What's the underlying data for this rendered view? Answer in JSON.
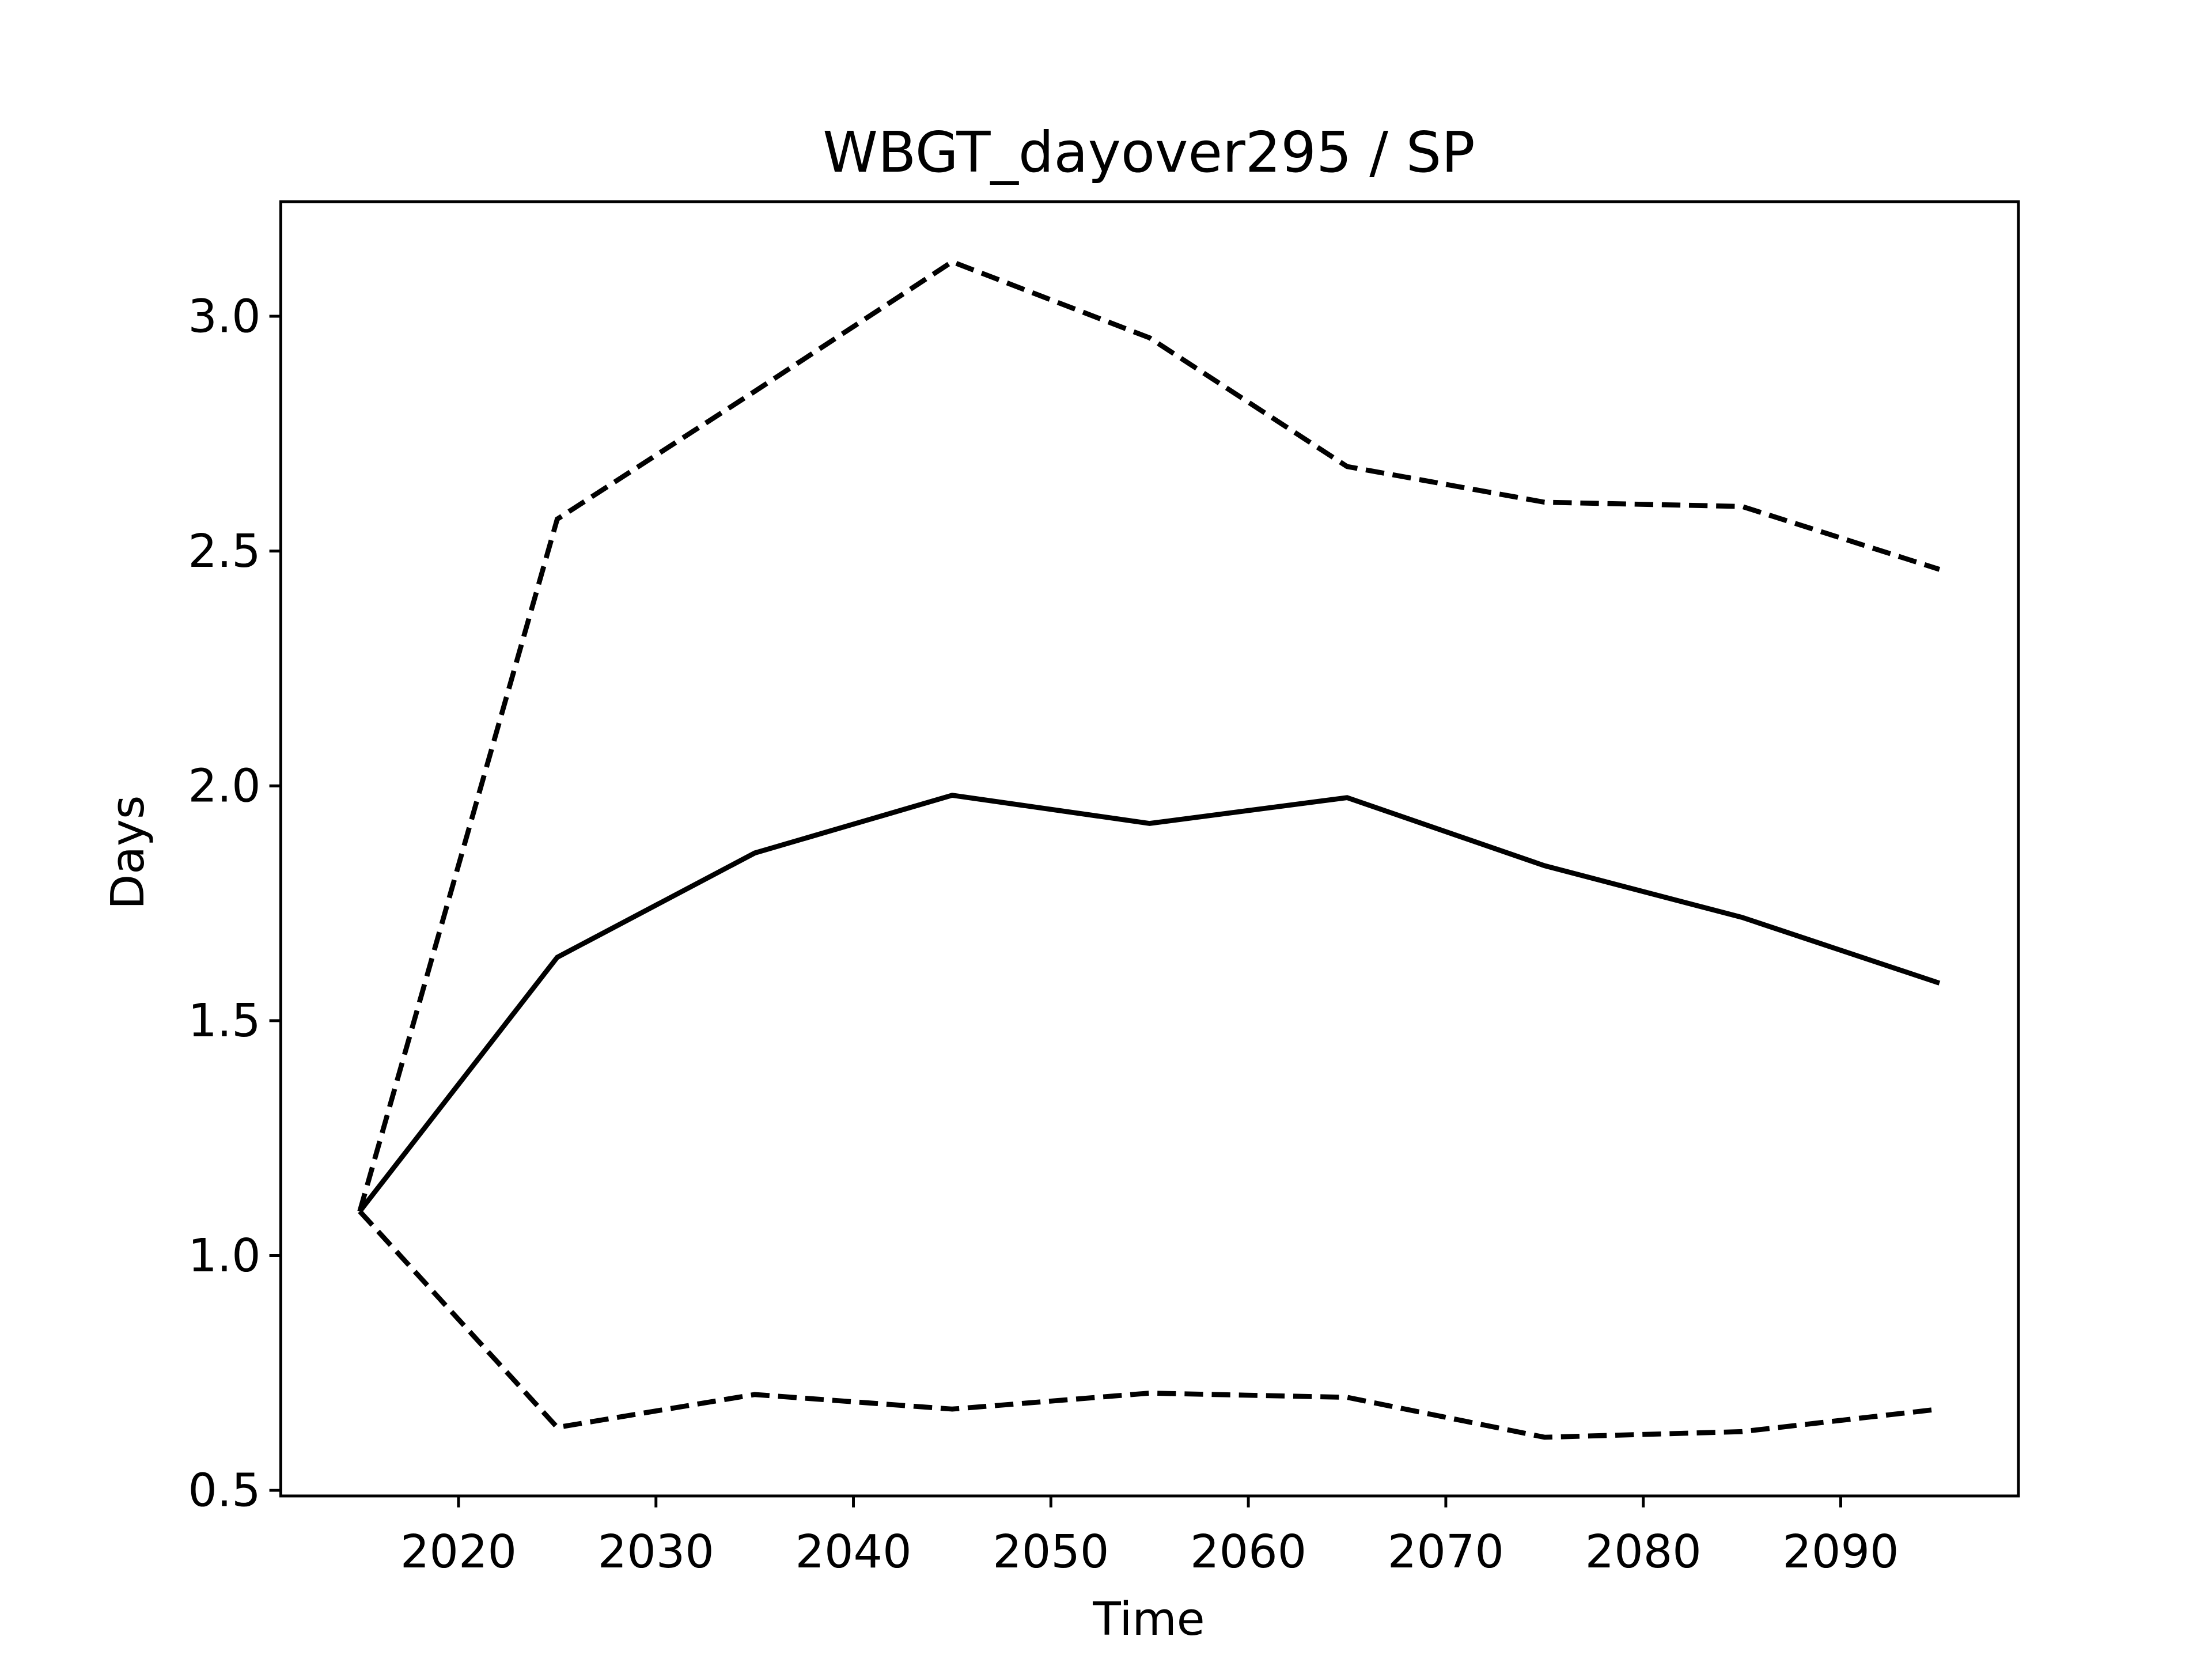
{
  "chart_data": {
    "type": "line",
    "title": "WBGT_dayover295 / SP",
    "x_label": "Time",
    "y_label": "Days",
    "x": [
      2015,
      2025,
      2035,
      2045,
      2055,
      2065,
      2075,
      2085,
      2095
    ],
    "series": [
      {
        "color": "#000000",
        "style": "solid",
        "values": [
          1.094,
          1.635,
          1.857,
          1.98,
          1.92,
          1.975,
          1.83,
          1.72,
          1.58
        ]
      },
      {
        "color": "#000000",
        "style": "dashed",
        "values": [
          1.094,
          2.568,
          2.84,
          3.116,
          2.954,
          2.68,
          2.604,
          2.595,
          2.461
        ]
      },
      {
        "color": "#000000",
        "style": "dashed",
        "values": [
          1.094,
          0.634,
          0.704,
          0.673,
          0.707,
          0.698,
          0.613,
          0.625,
          0.673
        ]
      }
    ],
    "xlim": [
      2011,
      2099
    ],
    "xticks": [
      2020,
      2030,
      2040,
      2050,
      2060,
      2070,
      2080,
      2090
    ],
    "ylim": [
      0.488,
      3.244
    ],
    "yticks": [
      0.5,
      {
        "value": 1.0,
        "label": "1.0"
      },
      1.5,
      {
        "value": 2.0,
        "label": "2.0"
      },
      2.5,
      {
        "value": 3.0,
        "label": "3.0"
      }
    ],
    "grid": false
  }
}
